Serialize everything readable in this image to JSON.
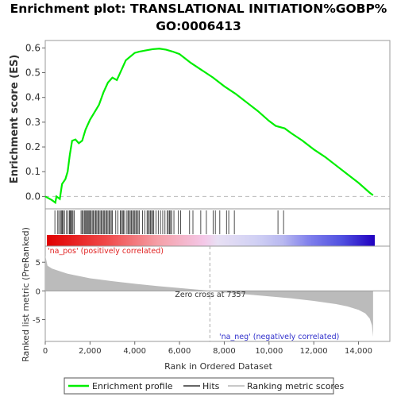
{
  "chart_data": {
    "type": "line",
    "title_lines": [
      "Enrichment plot: TRANSLATIONAL INITIATION%GOBP%",
      "GO:0006413"
    ],
    "es_panel": {
      "ylabel": "Enrichment score (ES)",
      "ylim": [
        -0.05,
        0.63
      ],
      "yticks": [
        0.0,
        0.1,
        0.2,
        0.3,
        0.4,
        0.5,
        0.6
      ],
      "ytick_labels": [
        "0.0",
        "0.1",
        "0.2",
        "0.3",
        "0.4",
        "0.5",
        "0.6"
      ],
      "profile": [
        [
          0,
          0.0
        ],
        [
          300,
          -0.015
        ],
        [
          450,
          -0.025
        ],
        [
          500,
          0.0
        ],
        [
          650,
          -0.01
        ],
        [
          750,
          0.05
        ],
        [
          900,
          0.07
        ],
        [
          1000,
          0.1
        ],
        [
          1100,
          0.17
        ],
        [
          1200,
          0.225
        ],
        [
          1350,
          0.23
        ],
        [
          1500,
          0.215
        ],
        [
          1650,
          0.225
        ],
        [
          1800,
          0.27
        ],
        [
          2000,
          0.31
        ],
        [
          2200,
          0.34
        ],
        [
          2400,
          0.37
        ],
        [
          2600,
          0.42
        ],
        [
          2800,
          0.46
        ],
        [
          3000,
          0.48
        ],
        [
          3200,
          0.47
        ],
        [
          3400,
          0.51
        ],
        [
          3600,
          0.55
        ],
        [
          3800,
          0.565
        ],
        [
          4000,
          0.58
        ],
        [
          4200,
          0.585
        ],
        [
          4500,
          0.59
        ],
        [
          4800,
          0.595
        ],
        [
          5100,
          0.597
        ],
        [
          5400,
          0.593
        ],
        [
          5700,
          0.585
        ],
        [
          6000,
          0.575
        ],
        [
          6500,
          0.54
        ],
        [
          7000,
          0.51
        ],
        [
          7500,
          0.48
        ],
        [
          8000,
          0.445
        ],
        [
          8500,
          0.415
        ],
        [
          9000,
          0.38
        ],
        [
          9500,
          0.345
        ],
        [
          10000,
          0.305
        ],
        [
          10300,
          0.285
        ],
        [
          10700,
          0.275
        ],
        [
          11000,
          0.255
        ],
        [
          11500,
          0.225
        ],
        [
          12000,
          0.19
        ],
        [
          12500,
          0.16
        ],
        [
          13000,
          0.125
        ],
        [
          13500,
          0.09
        ],
        [
          14000,
          0.055
        ],
        [
          14500,
          0.015
        ],
        [
          14650,
          0.005
        ]
      ]
    },
    "hits": [
      430,
      560,
      610,
      680,
      720,
      760,
      800,
      860,
      950,
      1020,
      1080,
      1120,
      1160,
      1200,
      1240,
      1300,
      1600,
      1650,
      1700,
      1750,
      1800,
      1840,
      1880,
      1920,
      1960,
      2000,
      2050,
      2100,
      2150,
      2200,
      2250,
      2300,
      2350,
      2400,
      2450,
      2500,
      2550,
      2600,
      2650,
      2700,
      2750,
      2800,
      2850,
      2900,
      2950,
      3000,
      3150,
      3250,
      3350,
      3400,
      3450,
      3500,
      3550,
      3650,
      3700,
      3750,
      3800,
      3850,
      3900,
      3950,
      4000,
      4050,
      4100,
      4150,
      4200,
      4350,
      4450,
      4550,
      4600,
      4650,
      4700,
      4750,
      4800,
      4850,
      4950,
      5050,
      5150,
      5250,
      5350,
      5450,
      5500,
      5550,
      5600,
      5650,
      5750,
      5950,
      6050,
      6450,
      6600,
      6950,
      7200,
      7500,
      7600,
      7800,
      8100,
      8200,
      8450,
      10400,
      10650
    ],
    "ranked_panel": {
      "ylabel": "Ranked list metric (PreRanked)",
      "ylim": [
        -8.8,
        7.8
      ],
      "yticks": [
        5,
        0,
        -5
      ],
      "ytick_labels": [
        "5",
        "0",
        "-5"
      ],
      "metric": [
        [
          0,
          6.2
        ],
        [
          100,
          4.4
        ],
        [
          300,
          3.9
        ],
        [
          600,
          3.5
        ],
        [
          1000,
          3.0
        ],
        [
          1500,
          2.6
        ],
        [
          2000,
          2.2
        ],
        [
          3000,
          1.7
        ],
        [
          4000,
          1.25
        ],
        [
          5000,
          0.85
        ],
        [
          6000,
          0.5
        ],
        [
          7000,
          0.15
        ],
        [
          7357,
          0.0
        ],
        [
          8000,
          -0.25
        ],
        [
          9000,
          -0.6
        ],
        [
          10000,
          -0.95
        ],
        [
          11000,
          -1.3
        ],
        [
          12000,
          -1.75
        ],
        [
          13000,
          -2.3
        ],
        [
          13500,
          -2.7
        ],
        [
          14000,
          -3.3
        ],
        [
          14300,
          -3.9
        ],
        [
          14500,
          -4.8
        ],
        [
          14600,
          -6.0
        ],
        [
          14650,
          -8.0
        ]
      ],
      "pos_label": "'na_pos' (positively correlated)",
      "neg_label": "'na_neg' (negatively correlated)",
      "zero_cross_label": "Zero cross at 7357",
      "zero_cross": 7357
    },
    "xlabel": "Rank in Ordered Dataset",
    "xlim": [
      0,
      15400
    ],
    "xticks": [
      0,
      2000,
      4000,
      6000,
      8000,
      10000,
      12000,
      14000
    ],
    "xtick_labels": [
      "0",
      "2,000",
      "4,000",
      "6,000",
      "8,000",
      "10,000",
      "12,000",
      "14,000"
    ],
    "n_ranked": 14650,
    "legend": {
      "placement": "bottom",
      "items": [
        {
          "label": "Enrichment profile",
          "color": "#00ee00"
        },
        {
          "label": "Hits",
          "color": "#666666"
        },
        {
          "label": "Ranking metric scores",
          "color": "#c8c8c8"
        }
      ]
    },
    "colors": {
      "profile": "#00ee00",
      "metric": "#bbbbbb",
      "pos_text": "#e02020",
      "neg_text": "#3030cc"
    }
  }
}
